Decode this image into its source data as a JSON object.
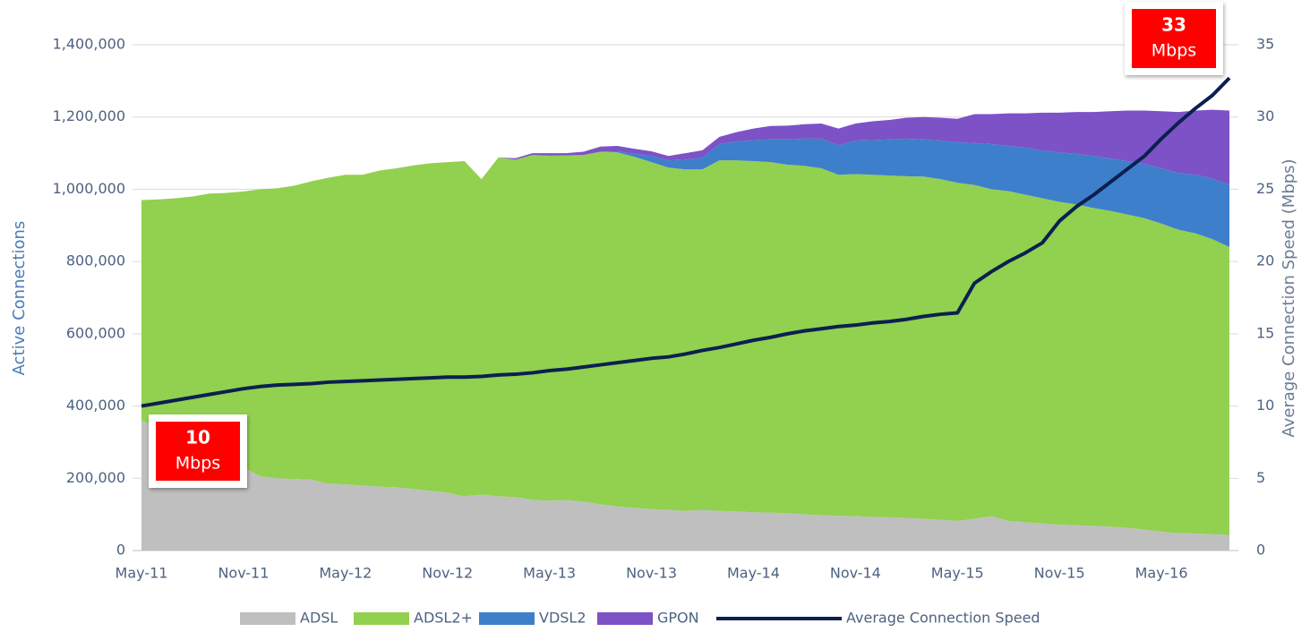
{
  "chart_data": {
    "type": "stacked_area_line",
    "y_axis_label": "Active Connections",
    "y2_axis_label": "Average Connection Speed (Mbps)",
    "categories": [
      "May-11",
      null,
      null,
      null,
      null,
      null,
      "Nov-11",
      null,
      null,
      null,
      null,
      null,
      "May-12",
      null,
      null,
      null,
      null,
      null,
      "Nov-12",
      null,
      null,
      null,
      null,
      null,
      "May-13",
      null,
      null,
      null,
      null,
      null,
      "Nov-13",
      null,
      null,
      null,
      null,
      null,
      "May-14",
      null,
      null,
      null,
      null,
      null,
      "Nov-14",
      null,
      null,
      null,
      null,
      null,
      "May-15",
      null,
      null,
      null,
      null,
      null,
      "Nov-15",
      null,
      null,
      null,
      null,
      null,
      "May-16",
      null,
      null,
      null,
      null
    ],
    "series": [
      {
        "name": "ADSL",
        "color": "#bfbfbf",
        "values": [
          360000,
          340000,
          320000,
          300000,
          280000,
          260000,
          230000,
          205000,
          200000,
          198000,
          196000,
          185000,
          183000,
          180000,
          177000,
          175000,
          170000,
          165000,
          160000,
          150000,
          155000,
          150000,
          148000,
          140000,
          138000,
          140000,
          135000,
          128000,
          122000,
          118000,
          115000,
          112000,
          110000,
          112000,
          110000,
          108000,
          106000,
          105000,
          103000,
          100000,
          98000,
          96000,
          95000,
          93000,
          92000,
          90000,
          88000,
          85000,
          82000,
          88000,
          95000,
          82000,
          78000,
          75000,
          72000,
          70000,
          68000,
          66000,
          63000,
          58000,
          52000,
          48000,
          47000,
          45000,
          43000
        ]
      },
      {
        "name": "ADSL2+",
        "color": "#92d050",
        "values": [
          610000,
          632000,
          655000,
          680000,
          708000,
          730000,
          764000,
          795000,
          803000,
          812000,
          826000,
          847000,
          857000,
          860000,
          875000,
          883000,
          896000,
          907000,
          915000,
          928000,
          873000,
          938000,
          934000,
          955000,
          955000,
          954000,
          960000,
          976000,
          980000,
          972000,
          960000,
          948000,
          945000,
          943000,
          970000,
          972000,
          972000,
          970000,
          965000,
          965000,
          960000,
          944000,
          947000,
          947000,
          946000,
          946000,
          947000,
          943000,
          936000,
          924000,
          905000,
          913000,
          907000,
          900000,
          893000,
          888000,
          880000,
          874000,
          867000,
          862000,
          853000,
          840000,
          831000,
          817000,
          797000
        ]
      },
      {
        "name": "VDSL2",
        "color": "#3e7fcb",
        "values": [
          0,
          0,
          0,
          0,
          0,
          0,
          0,
          0,
          0,
          0,
          0,
          0,
          0,
          0,
          0,
          0,
          0,
          0,
          0,
          0,
          0,
          0,
          0,
          0,
          0,
          0,
          0,
          0,
          3000,
          8000,
          17000,
          20000,
          27000,
          33000,
          45000,
          52000,
          58000,
          63000,
          70000,
          75000,
          82000,
          82000,
          93000,
          96000,
          100000,
          104000,
          103000,
          107000,
          112000,
          116000,
          125000,
          125000,
          130000,
          133000,
          137000,
          140000,
          144000,
          145000,
          148000,
          150000,
          153000,
          157000,
          162000,
          168000,
          172000
        ]
      },
      {
        "name": "GPON",
        "color": "#7c52c6",
        "values": [
          0,
          0,
          0,
          0,
          0,
          0,
          0,
          0,
          0,
          0,
          0,
          0,
          0,
          0,
          0,
          0,
          0,
          0,
          0,
          0,
          0,
          0,
          4000,
          5000,
          7000,
          6000,
          9000,
          14000,
          15000,
          14000,
          13000,
          12000,
          18000,
          20000,
          20000,
          26000,
          32000,
          37000,
          38000,
          40000,
          42000,
          46000,
          47000,
          52000,
          54000,
          58000,
          62000,
          63000,
          65000,
          80000,
          83000,
          90000,
          95000,
          104000,
          110000,
          116000,
          122000,
          131000,
          140000,
          148000,
          158000,
          169000,
          178000,
          190000,
          206000
        ]
      },
      {
        "name": "Average Connection Speed",
        "color": "#0b2050",
        "axis": "y2",
        "values": [
          10,
          10.2,
          10.4,
          10.6,
          10.8,
          11,
          11.2,
          11.35,
          11.45,
          11.5,
          11.55,
          11.65,
          11.7,
          11.75,
          11.8,
          11.85,
          11.9,
          11.95,
          12,
          12,
          12.05,
          12.15,
          12.2,
          12.3,
          12.45,
          12.55,
          12.7,
          12.85,
          13,
          13.15,
          13.3,
          13.4,
          13.6,
          13.85,
          14.05,
          14.3,
          14.55,
          14.75,
          15,
          15.2,
          15.35,
          15.5,
          15.6,
          15.75,
          15.85,
          16,
          16.2,
          16.35,
          16.45,
          18.5,
          19.3,
          20,
          20.6,
          21.3,
          22.8,
          23.8,
          24.6,
          25.5,
          26.4,
          27.3,
          28.5,
          29.6,
          30.6,
          31.5,
          32.7
        ]
      }
    ],
    "ylim": [
      0,
      1400000
    ],
    "yticks": [
      0,
      {
        "value": 200000,
        "label": "200,000"
      },
      {
        "value": 400000,
        "label": "400,000"
      },
      {
        "value": 600000,
        "label": "600,000"
      },
      {
        "value": 800000,
        "label": "800,000"
      },
      {
        "value": 1000000,
        "label": "1,000,000"
      },
      {
        "value": 1200000,
        "label": "1,200,000"
      },
      {
        "value": 1400000,
        "label": "1,400,000"
      }
    ],
    "y2lim": [
      0,
      35
    ],
    "y2ticks": [
      0,
      5,
      10,
      15,
      20,
      25,
      30,
      35
    ],
    "grid": true,
    "legend": "bottom",
    "annotations": [
      {
        "text": "10",
        "unit": "Mbps"
      },
      {
        "text": "33",
        "unit": "Mbps"
      }
    ]
  }
}
